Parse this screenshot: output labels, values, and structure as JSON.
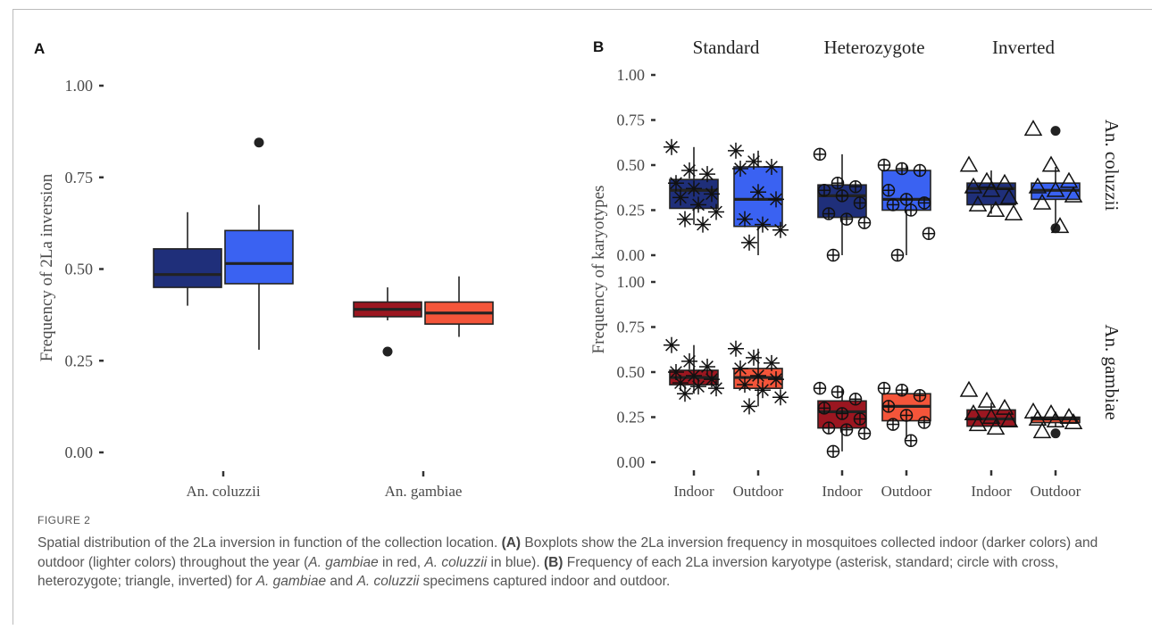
{
  "figure": {
    "label": "FIGURE 2",
    "caption": {
      "s1": "Spatial distribution of the 2La inversion in function of the collection location. ",
      "a_ref": "(A)",
      "s2": " Boxplots show the 2La inversion frequency in mosquitoes collected indoor (darker colors) and outdoor (lighter colors) throughout the year (",
      "sp_gam_1": "A. gambiae",
      "s3": " in red, ",
      "sp_col_1": "A. coluzzii",
      "s4": " in blue). ",
      "b_ref": "(B)",
      "s5": " Frequency of each 2La inversion karyotype (asterisk, standard; circle with cross, heterozygote; triangle, inverted) for ",
      "sp_gam_2": "A. gambiae",
      "s6": " and ",
      "sp_col_2": "A. coluzzii",
      "s7": " specimens captured indoor and outdoor."
    }
  },
  "colors": {
    "coluzzii_indoor": "#1f2f7a",
    "coluzzii_outdoor": "#3a62f2",
    "gambiae_indoor": "#9b1620",
    "gambiae_outdoor": "#f4553a",
    "outline": "#222222",
    "axis_text": "#4a4a4a"
  },
  "chart_data": [
    {
      "type": "boxplot",
      "panel_label": "A",
      "ylabel": "Frequency of 2La inversion",
      "xlabel": "",
      "ylim": [
        0,
        1
      ],
      "yticks": [
        "0.00",
        "0.25",
        "0.50",
        "0.75",
        "1.00"
      ],
      "categories": [
        "An. coluzzii",
        "An. gambiae"
      ],
      "grid": false,
      "boxes": [
        {
          "category": "An. coluzzii",
          "location": "Indoor",
          "color_key": "coluzzii_indoor",
          "min": 0.4,
          "q1": 0.45,
          "median": 0.485,
          "q3": 0.555,
          "max": 0.655,
          "outliers": []
        },
        {
          "category": "An. coluzzii",
          "location": "Outdoor",
          "color_key": "coluzzii_outdoor",
          "min": 0.28,
          "q1": 0.46,
          "median": 0.515,
          "q3": 0.605,
          "max": 0.675,
          "outliers": [
            0.845
          ]
        },
        {
          "category": "An. gambiae",
          "location": "Indoor",
          "color_key": "gambiae_indoor",
          "min": 0.36,
          "q1": 0.37,
          "median": 0.39,
          "q3": 0.41,
          "max": 0.45,
          "outliers": [
            0.275
          ]
        },
        {
          "category": "An. gambiae",
          "location": "Outdoor",
          "color_key": "gambiae_outdoor",
          "min": 0.315,
          "q1": 0.35,
          "median": 0.38,
          "q3": 0.41,
          "max": 0.48,
          "outliers": []
        }
      ]
    },
    {
      "type": "boxplot",
      "panel_label": "B",
      "ylabel": "Frequency of karyotypes",
      "ylim": [
        0,
        1
      ],
      "yticks": [
        "0.00",
        "0.25",
        "0.50",
        "0.75",
        "1.00"
      ],
      "facet_columns": [
        "Standard",
        "Heterozygote",
        "Inverted"
      ],
      "facet_rows": [
        "An. coluzzii",
        "An. gambiae"
      ],
      "x_categories": [
        "Indoor",
        "Outdoor"
      ],
      "grid": false,
      "facets": [
        {
          "row": 0,
          "col": 0,
          "marker": "asterisk",
          "boxes": [
            {
              "location": "Indoor",
              "color_key": "coluzzii_indoor",
              "min": 0.17,
              "q1": 0.26,
              "median": 0.36,
              "q3": 0.42,
              "max": 0.6,
              "outliers": [],
              "points": [
                0.6,
                0.47,
                0.45,
                0.4,
                0.37,
                0.34,
                0.32,
                0.28,
                0.24,
                0.2,
                0.17
              ]
            },
            {
              "location": "Outdoor",
              "color_key": "coluzzii_outdoor",
              "min": 0.0,
              "q1": 0.16,
              "median": 0.31,
              "q3": 0.49,
              "max": 0.58,
              "outliers": [],
              "points": [
                0.58,
                0.52,
                0.49,
                0.48,
                0.35,
                0.31,
                0.2,
                0.17,
                0.14,
                0.07
              ]
            }
          ]
        },
        {
          "row": 0,
          "col": 1,
          "marker": "circle-cross",
          "boxes": [
            {
              "location": "Indoor",
              "color_key": "coluzzii_indoor",
              "min": 0.0,
              "q1": 0.21,
              "median": 0.33,
              "q3": 0.39,
              "max": 0.56,
              "outliers": [],
              "points": [
                0.56,
                0.4,
                0.38,
                0.36,
                0.33,
                0.29,
                0.23,
                0.2,
                0.18,
                0.0
              ]
            },
            {
              "location": "Outdoor",
              "color_key": "coluzzii_outdoor",
              "min": 0.0,
              "q1": 0.25,
              "median": 0.31,
              "q3": 0.47,
              "max": 0.5,
              "outliers": [],
              "points": [
                0.5,
                0.48,
                0.47,
                0.36,
                0.31,
                0.29,
                0.28,
                0.25,
                0.12,
                0.0
              ]
            }
          ]
        },
        {
          "row": 0,
          "col": 2,
          "marker": "triangle",
          "boxes": [
            {
              "location": "Indoor",
              "color_key": "coluzzii_indoor",
              "min": 0.23,
              "q1": 0.28,
              "median": 0.37,
              "q3": 0.4,
              "max": 0.47,
              "outliers": [],
              "points": [
                0.5,
                0.41,
                0.4,
                0.38,
                0.36,
                0.32,
                0.28,
                0.25,
                0.23
              ]
            },
            {
              "location": "Outdoor",
              "color_key": "coluzzii_outdoor",
              "min": 0.15,
              "q1": 0.31,
              "median": 0.36,
              "q3": 0.4,
              "max": 0.49,
              "outliers": [
                0.69,
                0.15
              ],
              "points": [
                0.7,
                0.5,
                0.41,
                0.38,
                0.36,
                0.33,
                0.29,
                0.16
              ]
            }
          ]
        },
        {
          "row": 1,
          "col": 0,
          "marker": "asterisk",
          "boxes": [
            {
              "location": "Indoor",
              "color_key": "gambiae_indoor",
              "min": 0.38,
              "q1": 0.43,
              "median": 0.47,
              "q3": 0.51,
              "max": 0.65,
              "outliers": [],
              "points": [
                0.65,
                0.56,
                0.53,
                0.5,
                0.48,
                0.46,
                0.44,
                0.42,
                0.41,
                0.38
              ]
            },
            {
              "location": "Outdoor",
              "color_key": "gambiae_outdoor",
              "min": 0.31,
              "q1": 0.41,
              "median": 0.47,
              "q3": 0.52,
              "max": 0.63,
              "outliers": [],
              "points": [
                0.63,
                0.58,
                0.55,
                0.52,
                0.48,
                0.46,
                0.43,
                0.4,
                0.36,
                0.31
              ]
            }
          ]
        },
        {
          "row": 1,
          "col": 1,
          "marker": "circle-cross",
          "boxes": [
            {
              "location": "Indoor",
              "color_key": "gambiae_indoor",
              "min": 0.06,
              "q1": 0.19,
              "median": 0.28,
              "q3": 0.34,
              "max": 0.41,
              "outliers": [],
              "points": [
                0.41,
                0.39,
                0.35,
                0.3,
                0.27,
                0.24,
                0.19,
                0.18,
                0.16,
                0.06
              ]
            },
            {
              "location": "Outdoor",
              "color_key": "gambiae_outdoor",
              "min": 0.13,
              "q1": 0.23,
              "median": 0.31,
              "q3": 0.38,
              "max": 0.41,
              "outliers": [],
              "points": [
                0.41,
                0.4,
                0.37,
                0.31,
                0.26,
                0.22,
                0.21,
                0.12
              ]
            }
          ]
        },
        {
          "row": 1,
          "col": 2,
          "marker": "triangle",
          "boxes": [
            {
              "location": "Indoor",
              "color_key": "gambiae_indoor",
              "min": 0.19,
              "q1": 0.2,
              "median": 0.24,
              "q3": 0.29,
              "max": 0.33,
              "outliers": [],
              "points": [
                0.4,
                0.34,
                0.3,
                0.27,
                0.25,
                0.23,
                0.21,
                0.19
              ]
            },
            {
              "location": "Outdoor",
              "color_key": "gambiae_outdoor",
              "min": 0.2,
              "q1": 0.22,
              "median": 0.24,
              "q3": 0.25,
              "max": 0.28,
              "outliers": [
                0.16
              ],
              "points": [
                0.28,
                0.27,
                0.25,
                0.24,
                0.23,
                0.22,
                0.17
              ]
            }
          ]
        }
      ]
    }
  ]
}
